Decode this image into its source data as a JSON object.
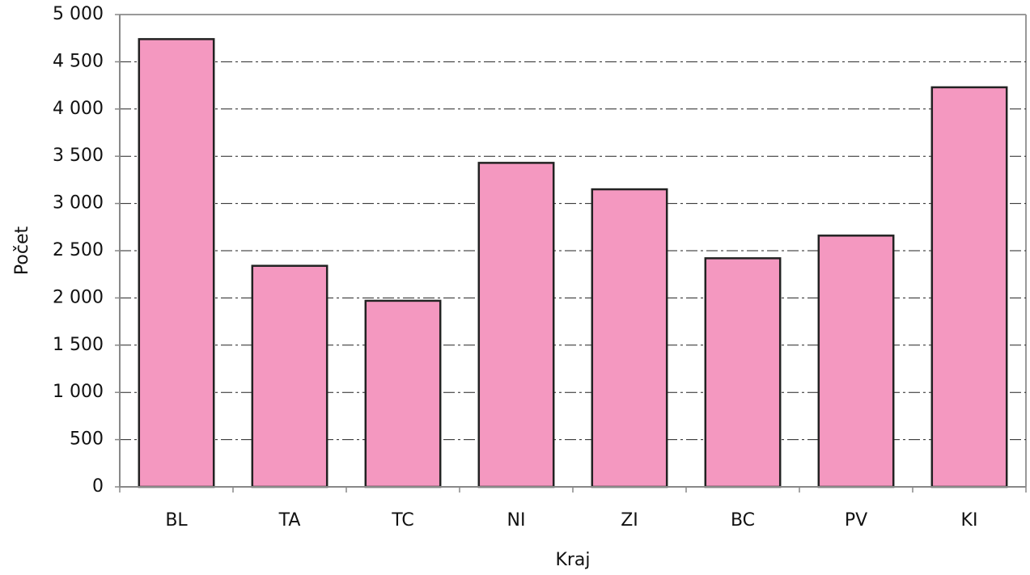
{
  "chart_data": {
    "type": "bar",
    "x_label": "Kraj",
    "y_label": "Počet",
    "categories": [
      "BL",
      "TA",
      "TC",
      "NI",
      "ZI",
      "BC",
      "PV",
      "KI"
    ],
    "values": [
      4740,
      2340,
      1970,
      3430,
      3150,
      2420,
      2660,
      4230
    ],
    "color": "#f498c0",
    "ylim": [
      0,
      5000
    ],
    "yticks": [
      0,
      500,
      {
        "value": 1000,
        "label": "1 000"
      },
      {
        "value": 1500,
        "label": "1 500"
      },
      {
        "value": 2000,
        "label": "2 000"
      },
      {
        "value": 2500,
        "label": "2 500"
      },
      {
        "value": 3000,
        "label": "3 000"
      },
      {
        "value": 3500,
        "label": "3 500"
      },
      {
        "value": 4000,
        "label": "4 000"
      },
      {
        "value": 4500,
        "label": "4 500"
      },
      {
        "value": 5000,
        "label": "5 000"
      }
    ],
    "grid": true
  }
}
